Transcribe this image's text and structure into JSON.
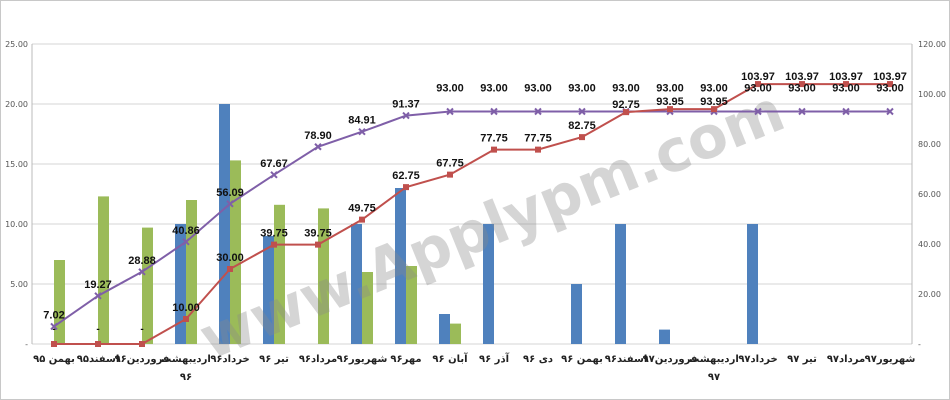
{
  "chart_data": {
    "type": "bar",
    "categories": [
      "بهمن ۹۵",
      "اسفند۹۵",
      "فروردین۹۶",
      "اردیبهشت ۹۶",
      "خرداد۹۶",
      "تیر ۹۶",
      "مرداد۹۶",
      "شهریور۹۶",
      "مهر۹۶",
      "آبان ۹۶",
      "آذر ۹۶",
      "دی ۹۶",
      "بهمن ۹۶",
      "اسفند۹۶",
      "فروردین۹۷",
      "اردیبهشت ۹۷",
      "خرداد۹۷",
      "تیر ۹۷",
      "مرداد۹۷",
      "شهریور۹۷"
    ],
    "left_axis": {
      "ticks": [
        "-",
        "5.00",
        "10.00",
        "15.00",
        "20.00",
        "25.00"
      ],
      "ylim": [
        0,
        25
      ]
    },
    "right_axis": {
      "ticks": [
        "-",
        "20.00",
        "40.00",
        "60.00",
        "80.00",
        "100.00",
        "120.00"
      ],
      "ylim": [
        0,
        120
      ]
    },
    "bar_series": [
      {
        "color": "#4f81bd",
        "axis": "left",
        "values": [
          0,
          0,
          0,
          10,
          20,
          9,
          0,
          10,
          13,
          2.5,
          10,
          0,
          5,
          10,
          1.2,
          0,
          10,
          0,
          0,
          0
        ]
      },
      {
        "color": "#9bbb59",
        "axis": "left",
        "values": [
          7,
          12.3,
          9.7,
          12,
          15.3,
          11.6,
          11.3,
          6,
          6.5,
          1.7,
          0,
          0,
          0,
          0,
          0,
          0,
          0,
          0,
          0,
          0
        ]
      }
    ],
    "line_series": [
      {
        "color": "#7f5fa8",
        "axis": "right",
        "marker": "x",
        "values": [
          7.02,
          19.27,
          28.88,
          40.86,
          56.09,
          67.67,
          78.9,
          84.91,
          91.37,
          93.0,
          93.0,
          93.0,
          93.0,
          93.0,
          93.0,
          93.0,
          93.0,
          93.0,
          93.0,
          93.0
        ],
        "labels": [
          "7.02",
          "19.27",
          "28.88",
          "40.86",
          "56.09",
          "67.67",
          "78.90",
          "84.91",
          "91.37",
          "93.00",
          "93.00",
          "93.00",
          "93.00",
          "93.00",
          "93.00",
          "93.00",
          "93.00",
          "93.00",
          "93.00",
          "93.00"
        ]
      },
      {
        "color": "#c0504d",
        "axis": "right",
        "marker": "square",
        "values": [
          0,
          0,
          0,
          10.0,
          30.0,
          39.75,
          39.75,
          49.75,
          62.75,
          67.75,
          77.75,
          77.75,
          82.75,
          92.75,
          93.95,
          93.95,
          103.97,
          103.97,
          103.97,
          103.97
        ],
        "labels": [
          "-",
          "-",
          "-",
          "10.00",
          "30.00",
          "39.75",
          "39.75",
          "49.75",
          "62.75",
          "67.75",
          "77.75",
          "77.75",
          "82.75",
          "92.75",
          "93.95",
          "93.95",
          "103.97",
          "103.97",
          "103.97",
          "103.97"
        ]
      }
    ],
    "grid": true,
    "legend": "none"
  },
  "watermark": "www.Applypm.com"
}
